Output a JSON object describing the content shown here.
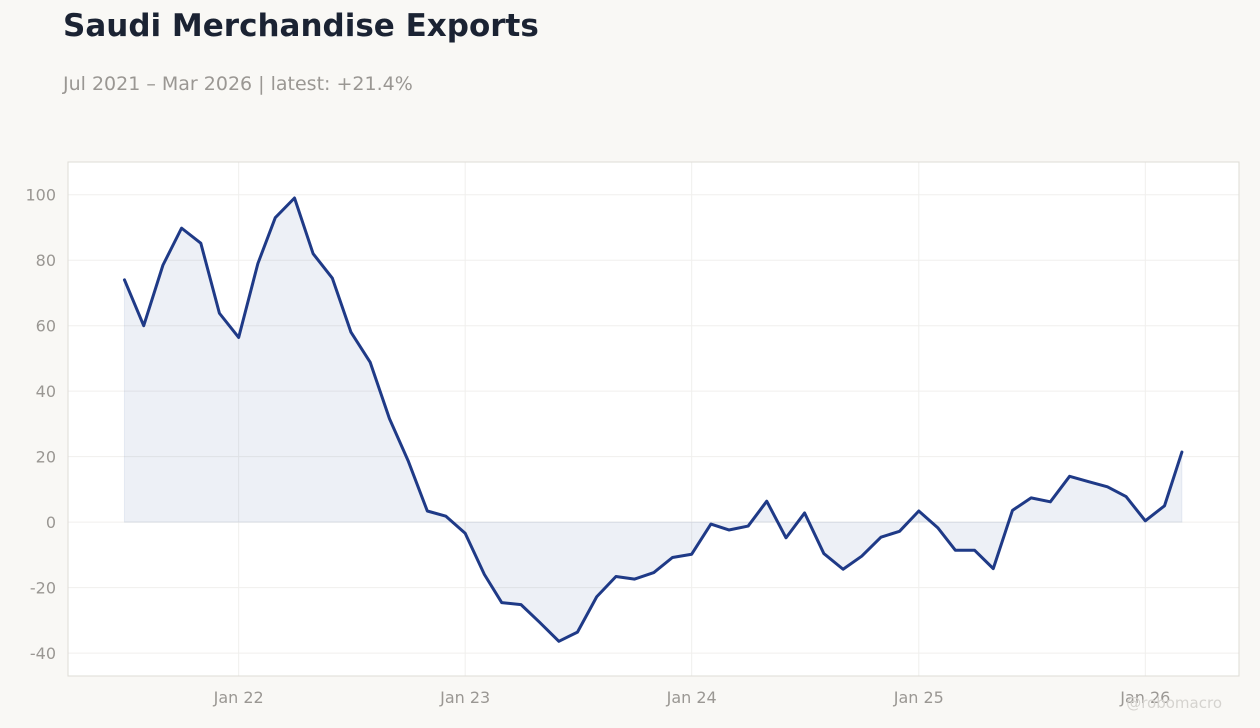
{
  "title": "Saudi Merchandise Exports",
  "subtitle": "Jul 2021 – Mar 2026 | latest: +21.4%",
  "watermark": "@robomacro",
  "colors": {
    "line": "#1f3a87",
    "fill": "#1f3a87",
    "grid": "#f0efed",
    "frame": "#dedcd6",
    "plot_bg": "#ffffff",
    "page_bg": "#f9f8f5"
  },
  "chart_data": {
    "type": "area",
    "title": "Saudi Merchandise Exports",
    "subtitle": "Jul 2021 – Mar 2026 | latest: +21.4%",
    "xlabel": "",
    "ylabel": "",
    "ylim": [
      -47,
      110
    ],
    "xlim": [
      "2021-04-01",
      "2026-06-01"
    ],
    "grid": true,
    "legend": "none",
    "yticks": [
      100,
      80,
      60,
      40,
      20,
      0,
      -20,
      -40
    ],
    "ytick_labels": [
      "100",
      "80",
      "60",
      "40",
      "20",
      "0",
      "-20",
      "-40"
    ],
    "xticks": [
      "2022-01-01",
      "2023-01-01",
      "2024-01-01",
      "2025-01-01",
      "2026-01-01"
    ],
    "xtick_labels": [
      "Jan 22",
      "Jan 23",
      "Jan 24",
      "Jan 25",
      "Jan 26"
    ],
    "series": [
      {
        "x": [
          "2021-07",
          "2021-08",
          "2021-09",
          "2021-10",
          "2021-11",
          "2021-12",
          "2022-01",
          "2022-02",
          "2022-03",
          "2022-04",
          "2022-05",
          "2022-06",
          "2022-07",
          "2022-08",
          "2022-09",
          "2022-10",
          "2022-11",
          "2022-12",
          "2023-01",
          "2023-02",
          "2023-03",
          "2023-04",
          "2023-05",
          "2023-06",
          "2023-07",
          "2023-08",
          "2023-09",
          "2023-10",
          "2023-11",
          "2023-12",
          "2024-01",
          "2024-02",
          "2024-03",
          "2024-04",
          "2024-05",
          "2024-06",
          "2024-07",
          "2024-08",
          "2024-09",
          "2024-10",
          "2024-11",
          "2024-12",
          "2025-01",
          "2025-02",
          "2025-03",
          "2025-04",
          "2025-05",
          "2025-06",
          "2025-07",
          "2025-08",
          "2025-09",
          "2025-10",
          "2025-11",
          "2025-12",
          "2026-01",
          "2026-02",
          "2026-03"
        ],
        "values": [
          74.0,
          60.0,
          78.5,
          89.8,
          85.2,
          63.8,
          56.4,
          79.0,
          93.0,
          99.0,
          82.0,
          74.5,
          58.0,
          48.8,
          31.6,
          18.8,
          3.4,
          1.8,
          -3.4,
          -16.0,
          -24.6,
          -25.2,
          -30.6,
          -36.4,
          -33.6,
          -22.8,
          -16.6,
          -17.4,
          -15.4,
          -10.8,
          -9.8,
          -0.6,
          -2.4,
          -1.2,
          6.4,
          -4.8,
          2.8,
          -9.6,
          -14.4,
          -10.4,
          -4.6,
          -2.8,
          3.4,
          -1.8,
          -8.6,
          -8.6,
          -14.2,
          3.6,
          7.4,
          6.2,
          14.0,
          12.4,
          10.8,
          7.8,
          0.4,
          5.0,
          21.4
        ]
      }
    ]
  }
}
